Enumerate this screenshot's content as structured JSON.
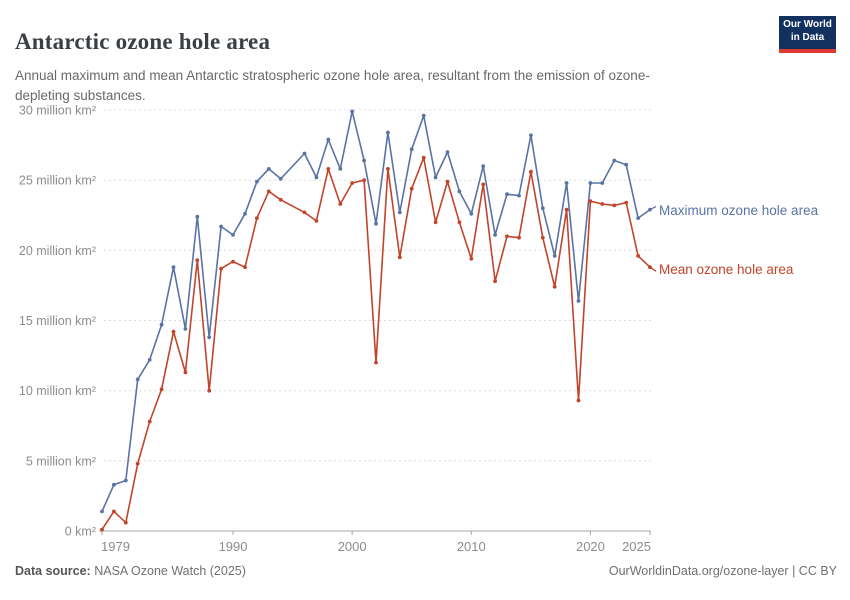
{
  "header": {
    "title": "Antarctic ozone hole area",
    "subtitle": "Annual maximum and mean Antarctic stratospheric ozone hole area, resultant from the emission of ozone-depleting substances.",
    "logo": {
      "line1": "Our World",
      "line2": "in Data",
      "bg_color": "#12315f",
      "accent_color": "#dc3a32"
    }
  },
  "chart_data": {
    "type": "line",
    "title": "Antarctic ozone hole area",
    "xlabel": "",
    "ylabel": "million km²",
    "xlim": [
      1979,
      2025
    ],
    "ylim": [
      0,
      30
    ],
    "grid": "horizontal dashed",
    "legend_position": "right of last point",
    "x": [
      1979,
      1980,
      1981,
      1982,
      1983,
      1984,
      1985,
      1986,
      1987,
      1988,
      1989,
      1990,
      1991,
      1992,
      1993,
      1994,
      1995,
      1996,
      1997,
      1998,
      1999,
      2000,
      2001,
      2002,
      2003,
      2004,
      2005,
      2006,
      2007,
      2008,
      2009,
      2010,
      2011,
      2012,
      2013,
      2014,
      2015,
      2016,
      2017,
      2018,
      2019,
      2020,
      2021,
      2022,
      2023,
      2024,
      2025
    ],
    "x_ticks": [
      1979,
      1990,
      2000,
      2010,
      2020,
      2025
    ],
    "y_ticks": [
      {
        "value": 0,
        "label": "0 km²"
      },
      {
        "value": 5,
        "label": "5 million km²"
      },
      {
        "value": 10,
        "label": "10 million km²"
      },
      {
        "value": 15,
        "label": "15 million km²"
      },
      {
        "value": 20,
        "label": "20 million km²"
      },
      {
        "value": 25,
        "label": "25 million km²"
      },
      {
        "value": 30,
        "label": "30 million km²"
      }
    ],
    "series": [
      {
        "key": "maximum",
        "name": "Maximum ozone hole area",
        "color": "#5a73a5",
        "values": [
          1.4,
          3.3,
          3.6,
          10.8,
          12.2,
          14.7,
          18.8,
          14.4,
          22.4,
          13.8,
          21.7,
          21.1,
          22.6,
          24.9,
          25.8,
          25.1,
          null,
          26.9,
          25.2,
          27.9,
          25.8,
          29.9,
          26.4,
          21.9,
          28.4,
          22.7,
          27.2,
          29.6,
          25.2,
          27.0,
          24.2,
          22.6,
          26.0,
          21.1,
          24.0,
          23.9,
          28.2,
          23.0,
          19.6,
          24.8,
          16.4,
          24.8,
          24.8,
          26.4,
          26.1,
          22.3,
          22.9
        ]
      },
      {
        "key": "mean",
        "name": "Mean ozone hole area",
        "color": "#c1442b",
        "values": [
          0.1,
          1.4,
          0.6,
          4.8,
          7.8,
          10.1,
          14.2,
          11.3,
          19.3,
          10.0,
          18.7,
          19.2,
          18.8,
          22.3,
          24.2,
          23.6,
          null,
          22.7,
          22.1,
          25.8,
          23.3,
          24.8,
          25.0,
          12.0,
          25.8,
          19.5,
          24.4,
          26.6,
          22.0,
          24.9,
          22.0,
          19.4,
          24.7,
          17.8,
          21.0,
          20.9,
          25.6,
          20.9,
          17.4,
          22.9,
          9.3,
          23.5,
          23.3,
          23.2,
          23.4,
          19.6,
          18.8
        ]
      }
    ],
    "notes": "Value for 1995 is missing; lines connect 1994 directly to 1996."
  },
  "footer": {
    "data_source_label": "Data source:",
    "data_source_value": " NASA Ozone Watch (2025)",
    "attribution": "OurWorldinData.org/ozone-layer",
    "license": " | CC BY"
  }
}
